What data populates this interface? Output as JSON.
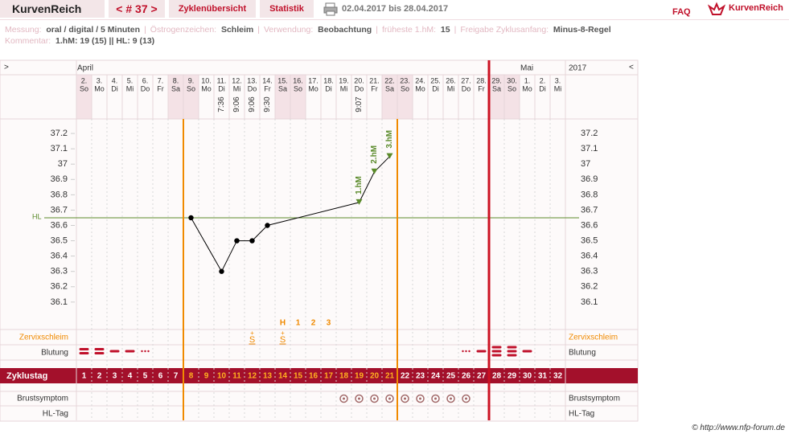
{
  "header": {
    "brand": "KurvenReich",
    "cycle_nav": "< # 37 >",
    "tabs": [
      "Zyklenübersicht",
      "Statistik"
    ],
    "date_range": "02.04.2017 bis 28.04.2017",
    "faq": "FAQ",
    "logo": "KurvenReich"
  },
  "info": {
    "separator": "|",
    "rows": [
      [
        {
          "label": "Messung:",
          "value": "oral / digital / 5 Minuten"
        },
        {
          "label": "Östrogenzeichen:",
          "value": "Schleim"
        },
        {
          "label": "Verwendung:",
          "value": "Beobachtung"
        },
        {
          "label": "früheste 1.hM:",
          "value": "15"
        },
        {
          "label": "Freigabe Zyklusanfang:",
          "value": "Minus-8-Regel"
        }
      ],
      [
        {
          "label": "Kommentar:",
          "value": "1.hM: 19 (15) || HL: 9 (13)"
        }
      ]
    ]
  },
  "chart_data": {
    "type": "line",
    "nav_left": ">",
    "nav_right": "<",
    "year": "2017",
    "months": [
      "April",
      "Mai"
    ],
    "dates": [
      "2.",
      "3.",
      "4.",
      "5.",
      "6.",
      "7.",
      "8.",
      "9.",
      "10.",
      "11.",
      "12.",
      "13.",
      "14.",
      "15.",
      "16.",
      "17.",
      "18.",
      "19.",
      "20.",
      "21.",
      "22.",
      "23.",
      "24.",
      "25.",
      "26.",
      "27.",
      "28.",
      "29.",
      "30.",
      "1.",
      "2.",
      "3."
    ],
    "weekdays": [
      "So",
      "Mo",
      "Di",
      "Mi",
      "Do",
      "Fr",
      "Sa",
      "So",
      "Mo",
      "Di",
      "Mi",
      "Do",
      "Fr",
      "Sa",
      "So",
      "Mo",
      "Di",
      "Mi",
      "Do",
      "Fr",
      "Sa",
      "So",
      "Mo",
      "Di",
      "Mi",
      "Do",
      "Fr",
      "Sa",
      "So",
      "Mo",
      "Di",
      "Mi"
    ],
    "weekend": [
      1,
      7,
      8,
      14,
      15,
      21,
      22,
      28,
      29
    ],
    "times": [
      null,
      null,
      null,
      null,
      null,
      null,
      null,
      null,
      null,
      "7:36",
      "9:06",
      "9:06",
      "9:30",
      null,
      null,
      null,
      null,
      null,
      "9:07",
      null,
      null,
      null,
      null,
      null,
      null,
      null,
      null,
      null,
      null,
      null,
      null,
      null
    ],
    "cycle_days": [
      1,
      2,
      3,
      4,
      5,
      6,
      7,
      8,
      9,
      10,
      11,
      12,
      13,
      14,
      15,
      16,
      17,
      18,
      19,
      20,
      21,
      22,
      23,
      24,
      25,
      26,
      27,
      28,
      29,
      30,
      31,
      32
    ],
    "highlight_range": [
      8,
      21
    ],
    "x": [
      8,
      10,
      11,
      12,
      13,
      19,
      20,
      21
    ],
    "values": [
      36.65,
      36.3,
      36.5,
      36.5,
      36.6,
      36.75,
      36.95,
      37.05
    ],
    "color": "#000000",
    "xlim": [
      0.5,
      32.5
    ],
    "ylim": [
      35.9,
      37.3
    ],
    "yticks": [
      36.1,
      36.2,
      36.3,
      36.4,
      36.5,
      36.6,
      36.7,
      36.8,
      36.9,
      37,
      37.1,
      37.2
    ],
    "grid": false,
    "coverline": {
      "label": "HL",
      "value": 36.65,
      "color": "#5a8a2a"
    },
    "annotations": [
      {
        "text": "1.hM",
        "x": 19
      },
      {
        "text": "2.hM",
        "x": 20
      },
      {
        "text": "3.hM",
        "x": 21
      }
    ],
    "phase_lines": [
      {
        "x": 7.5,
        "color": "#f08a00"
      },
      {
        "x": 21.5,
        "color": "#f08a00"
      },
      {
        "x": 27.5,
        "color": "#cc1122"
      }
    ],
    "peak_labels": {
      "labels": [
        "H",
        "1",
        "2",
        "3"
      ],
      "x": [
        14,
        15,
        16,
        17
      ]
    },
    "mucus": [
      {
        "x": 12,
        "top": "+",
        "label": "S"
      },
      {
        "x": 14,
        "top": "+",
        "label": "S"
      }
    ],
    "bleeding": {
      "x": [
        1,
        2,
        3,
        4,
        5,
        26,
        27,
        28,
        29,
        30
      ],
      "levels": [
        2,
        2,
        1,
        1,
        0,
        0,
        1,
        3,
        3,
        1
      ]
    },
    "breast": {
      "x": [
        18,
        19,
        20,
        21,
        22,
        23,
        24,
        25,
        26
      ]
    },
    "row_labels": {
      "zervix": "Zervixschleim",
      "blutung": "Blutung",
      "zyklustag": "Zyklustag",
      "brust": "Brustsymptom",
      "hl_tag": "HL-Tag"
    }
  },
  "footer": "© http://www.nfp-forum.de"
}
